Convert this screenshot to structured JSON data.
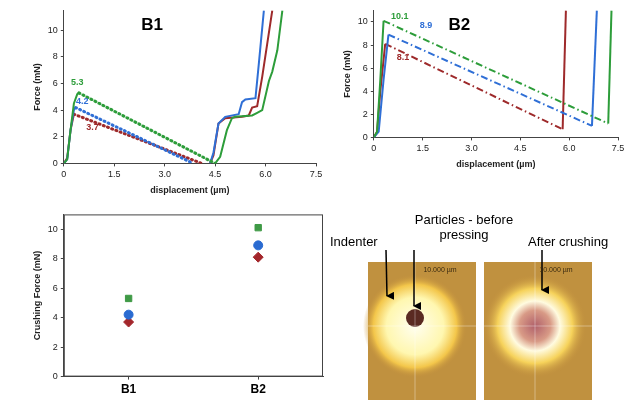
{
  "chart_data": [
    {
      "type": "line",
      "title": "B1",
      "x_label": "displacement (µm)",
      "y_label": "Force (mN)",
      "xlim": [
        0,
        7.5
      ],
      "xticks": [
        0,
        1.5,
        {
          "value": 3,
          "label": "3.0"
        },
        4.5,
        {
          "value": 6,
          "label": "6.0"
        },
        7.5
      ],
      "ylim": [
        0,
        11.5
      ],
      "yticks": [
        0,
        2,
        4,
        6,
        8,
        10
      ],
      "grid": false,
      "series": [
        {
          "color": "#2d9d3a",
          "line_style": "solid",
          "x": [
            0,
            0.1,
            0.2,
            0.3,
            0.4,
            0.45
          ],
          "values": [
            0,
            0.3,
            2.5,
            4.5,
            5.2,
            5.3
          ]
        },
        {
          "color": "#2d9d3a",
          "line_style": "dotted",
          "x": [
            0.45,
            4.5
          ],
          "values": [
            5.3,
            0
          ]
        },
        {
          "color": "#2d9d3a",
          "line_style": "solid",
          "x": [
            4.5,
            4.65,
            4.85,
            5.0,
            5.1,
            5.6,
            5.75,
            5.9,
            6.1,
            6.2,
            6.35,
            6.5
          ],
          "values": [
            0,
            0.5,
            2.5,
            3.4,
            3.5,
            3.6,
            3.8,
            4.0,
            6.2,
            6.9,
            8.5,
            11.5
          ]
        },
        {
          "color": "#2f6fd6",
          "line_style": "solid",
          "x": [
            0,
            0.1,
            0.2,
            0.3,
            0.35
          ],
          "values": [
            0,
            0.3,
            2.5,
            4.0,
            4.2
          ]
        },
        {
          "color": "#2f6fd6",
          "line_style": "dotted",
          "x": [
            0.35,
            3.85
          ],
          "values": [
            4.2,
            0
          ]
        },
        {
          "color": "#2f6fd6",
          "line_style": "solid",
          "x": [
            4.35,
            4.45,
            4.6,
            4.8,
            5.2,
            5.3,
            5.4,
            5.7,
            5.8,
            5.95
          ],
          "values": [
            0,
            0.8,
            3.0,
            3.5,
            3.7,
            4.6,
            4.8,
            4.9,
            7.5,
            11.5
          ]
        },
        {
          "color": "#9e2a2b",
          "line_style": "solid",
          "x": [
            0,
            0.1,
            0.2,
            0.3
          ],
          "values": [
            0,
            0.4,
            2.5,
            3.7
          ]
        },
        {
          "color": "#9e2a2b",
          "line_style": "dotted",
          "x": [
            0.3,
            4.1
          ],
          "values": [
            3.7,
            0
          ]
        },
        {
          "color": "#9e2a2b",
          "line_style": "solid",
          "x": [
            4.35,
            4.45,
            4.6,
            4.8,
            5.3,
            5.5,
            5.6,
            5.75,
            5.9,
            6.05,
            6.2
          ],
          "values": [
            0,
            0.6,
            3.0,
            3.4,
            3.5,
            3.6,
            4.2,
            4.3,
            6.5,
            9.0,
            11.5
          ]
        }
      ],
      "annotations": [
        {
          "text": "5.3",
          "x": 0.4,
          "y": 6.1,
          "color": "#2d9d3a"
        },
        {
          "text": "4.2",
          "x": 0.55,
          "y": 4.65,
          "color": "#2f6fd6"
        },
        {
          "text": "3.7",
          "x": 0.85,
          "y": 2.7,
          "color": "#9e2a2b"
        }
      ]
    },
    {
      "type": "line",
      "title": "B2",
      "x_label": "displacement (µm)",
      "y_label": "Force (mN)",
      "xlim": [
        0,
        7.5
      ],
      "xticks": [
        0,
        1.5,
        {
          "value": 3,
          "label": "3.0"
        },
        4.5,
        {
          "value": 6,
          "label": "6.0"
        },
        7.5
      ],
      "ylim": [
        0,
        11
      ],
      "yticks": [
        0,
        2,
        4,
        6,
        8,
        10
      ],
      "grid": false,
      "series": [
        {
          "color": "#2d9d3a",
          "line_style": "solid",
          "x": [
            0,
            0.1,
            0.2,
            0.3
          ],
          "values": [
            0,
            0.5,
            5,
            10.1
          ]
        },
        {
          "color": "#2d9d3a",
          "line_style": "dash_dot",
          "x": [
            0.3,
            7.2
          ],
          "values": [
            10.1,
            1.2
          ]
        },
        {
          "color": "#2d9d3a",
          "line_style": "solid",
          "x": [
            7.2,
            7.3
          ],
          "values": [
            1.2,
            11
          ]
        },
        {
          "color": "#2f6fd6",
          "line_style": "solid",
          "x": [
            0,
            0.15,
            0.3,
            0.45
          ],
          "values": [
            0,
            0.5,
            5,
            8.9
          ]
        },
        {
          "color": "#2f6fd6",
          "line_style": "dash_dot",
          "x": [
            0.45,
            6.7
          ],
          "values": [
            8.9,
            1.0
          ]
        },
        {
          "color": "#2f6fd6",
          "line_style": "solid",
          "x": [
            6.7,
            6.85
          ],
          "values": [
            1.0,
            11
          ]
        },
        {
          "color": "#9e2a2b",
          "line_style": "solid",
          "x": [
            0,
            0.1,
            0.2,
            0.35
          ],
          "values": [
            0,
            0.5,
            4,
            8.1
          ]
        },
        {
          "color": "#9e2a2b",
          "line_style": "dash_dot",
          "x": [
            0.35,
            5.8
          ],
          "values": [
            8.1,
            0.7
          ]
        },
        {
          "color": "#9e2a2b",
          "line_style": "solid",
          "x": [
            5.8,
            5.9
          ],
          "values": [
            0.7,
            11
          ]
        }
      ],
      "annotations": [
        {
          "text": "10.1",
          "x": 0.8,
          "y": 10.45,
          "color": "#2d9d3a"
        },
        {
          "text": "8.9",
          "x": 1.6,
          "y": 9.7,
          "color": "#2f6fd6"
        },
        {
          "text": "8.1",
          "x": 0.9,
          "y": 6.9,
          "color": "#9e2a2b"
        }
      ]
    },
    {
      "type": "scatter",
      "y_label": "Crushing Force (mN)",
      "categories": [
        "B1",
        "B2"
      ],
      "ylim": [
        0,
        11
      ],
      "yticks": [
        0,
        2,
        4,
        6,
        8,
        10
      ],
      "grid": false,
      "series": [
        {
          "color": "#3f9a46",
          "marker": "square",
          "values": [
            5.3,
            10.1
          ]
        },
        {
          "color": "#2a6bd1",
          "marker": "circle",
          "values": [
            4.2,
            8.9
          ]
        },
        {
          "color": "#a3262b",
          "marker": "diamond",
          "values": [
            3.7,
            8.1
          ]
        }
      ]
    }
  ],
  "photo_panel": {
    "labels": [
      "Indenter",
      "Particles - before pressing",
      "After crushing"
    ],
    "photos": [
      {
        "scale_label": "10.000 µm"
      },
      {
        "scale_label": "10.000 µm"
      }
    ]
  }
}
